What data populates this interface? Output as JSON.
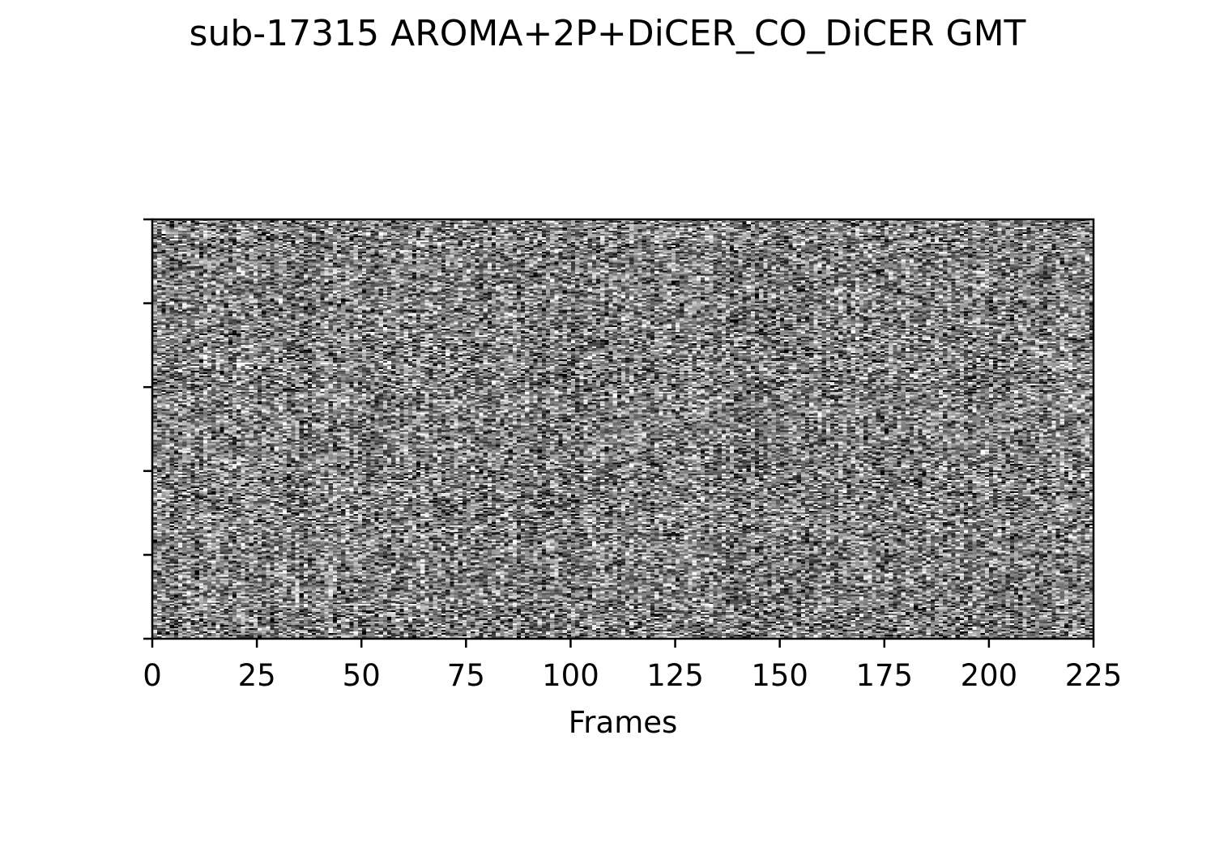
{
  "chart_data": {
    "type": "heatmap",
    "title": "sub-17315 AROMA+2P+DiCER_CO_DiCER GMT",
    "xlabel": "Frames",
    "ylabel": "",
    "xlim": [
      0,
      225
    ],
    "x_ticks": [
      0,
      25,
      50,
      75,
      100,
      125,
      150,
      175,
      200,
      225
    ],
    "y_tick_count": 6,
    "colormap": "gray",
    "grid": false,
    "legend": "none"
  },
  "colors": {
    "background": "#ffffff",
    "axis": "#000000"
  }
}
